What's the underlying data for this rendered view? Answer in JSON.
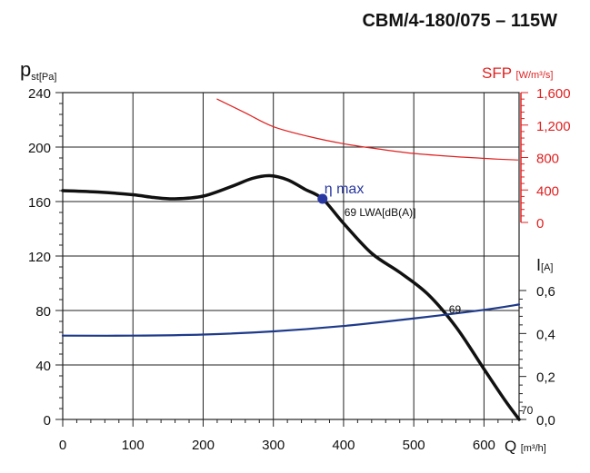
{
  "chart_data": {
    "type": "line",
    "title": "CBM/4-180/075 – 115W",
    "xlabel": "Q",
    "xunit": "[m³/h]",
    "xlim": [
      0,
      650
    ],
    "xticks": [
      0,
      100,
      200,
      300,
      400,
      500,
      600
    ],
    "xtick_labels": [
      "0",
      "100",
      "200",
      "300",
      "400",
      "500",
      "600"
    ],
    "grid": true,
    "axes": {
      "pressure": {
        "label": "p",
        "label_sub": "st",
        "unit": "[Pa]",
        "side": "left",
        "ylim": [
          0,
          240
        ],
        "ticks": [
          0,
          40,
          80,
          120,
          160,
          200,
          240
        ],
        "tick_labels": [
          "0",
          "40",
          "80",
          "120",
          "160",
          "200",
          "240"
        ]
      },
      "sfp": {
        "label": "SFP",
        "unit": "[W/m³/s]",
        "side": "right",
        "color": "#e02020",
        "ylim": [
          0,
          1600
        ],
        "ticks": [
          0,
          400,
          800,
          1200,
          1600
        ],
        "tick_labels": [
          "0",
          "400",
          "800",
          "1,200",
          "1,600"
        ]
      },
      "current": {
        "label": "I",
        "unit": "[A]",
        "side": "right",
        "ylim": [
          0,
          0.6
        ],
        "ticks": [
          0,
          0.2,
          0.4,
          0.6
        ],
        "tick_labels": [
          "0,0",
          "0,2",
          "0,4",
          "0,6"
        ]
      }
    },
    "series": [
      {
        "axis": "pressure",
        "color": "#111111",
        "points": [
          [
            0,
            168
          ],
          [
            50,
            167
          ],
          [
            100,
            165
          ],
          [
            130,
            163
          ],
          [
            160,
            162
          ],
          [
            200,
            164
          ],
          [
            240,
            171
          ],
          [
            270,
            177
          ],
          [
            295,
            179
          ],
          [
            320,
            176
          ],
          [
            345,
            169
          ],
          [
            370,
            162
          ],
          [
            400,
            144
          ],
          [
            440,
            122
          ],
          [
            480,
            108
          ],
          [
            520,
            92
          ],
          [
            560,
            68
          ],
          [
            600,
            37
          ],
          [
            630,
            14
          ],
          [
            650,
            0
          ]
        ]
      },
      {
        "axis": "sfp",
        "color": "#e02020",
        "points": [
          [
            220,
            1520
          ],
          [
            260,
            1350
          ],
          [
            300,
            1180
          ],
          [
            350,
            1060
          ],
          [
            400,
            970
          ],
          [
            450,
            905
          ],
          [
            500,
            850
          ],
          [
            560,
            810
          ],
          [
            620,
            780
          ],
          [
            648,
            770
          ]
        ]
      },
      {
        "axis": "current",
        "color": "#1e3a8a",
        "points": [
          [
            0,
            0.39
          ],
          [
            100,
            0.39
          ],
          [
            200,
            0.395
          ],
          [
            300,
            0.41
          ],
          [
            400,
            0.435
          ],
          [
            500,
            0.47
          ],
          [
            600,
            0.51
          ],
          [
            650,
            0.535
          ]
        ]
      }
    ],
    "annotations": {
      "eta_label": "η max",
      "eta_point": {
        "x": 370,
        "y": 162
      },
      "lwa_label": "69 LWA[dB(A)]",
      "noise_mid": "69",
      "noise_end": "70"
    }
  }
}
